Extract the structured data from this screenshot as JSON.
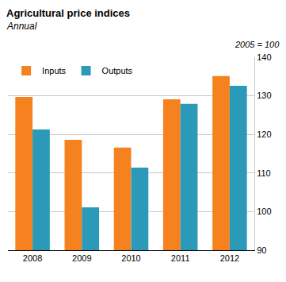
{
  "chart_data": {
    "type": "bar",
    "title": "Agricultural price indices",
    "subtitle": "Annual",
    "ylabel": "2005 = 100",
    "categories": [
      "2008",
      "2009",
      "2010",
      "2011",
      "2012"
    ],
    "series": [
      {
        "name": "Inputs",
        "color": "#f5821f",
        "values": [
          129.7,
          118.6,
          116.6,
          129.1,
          135.1
        ]
      },
      {
        "name": "Outputs",
        "color": "#2b9ab8",
        "values": [
          121.3,
          101.1,
          111.4,
          127.9,
          132.6
        ]
      }
    ],
    "ylim": [
      90,
      140
    ],
    "yticks": [
      90,
      100,
      110,
      120,
      130,
      140
    ],
    "grid": true,
    "legend": "top left"
  }
}
